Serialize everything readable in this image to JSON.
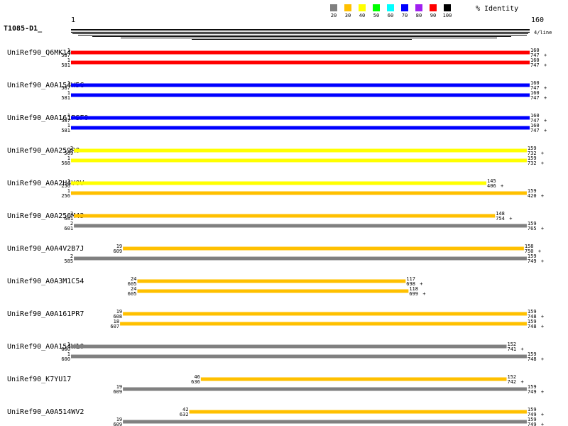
{
  "legend": {
    "items": [
      {
        "label": "20",
        "color": "#808080"
      },
      {
        "label": "30",
        "color": "#ffc000"
      },
      {
        "label": "40",
        "color": "#ffff00"
      },
      {
        "label": "50",
        "color": "#00ff00"
      },
      {
        "label": "60",
        "color": "#00ffff"
      },
      {
        "label": "70",
        "color": "#0000ff"
      },
      {
        "label": "80",
        "color": "#a020f0"
      },
      {
        "label": "90",
        "color": "#ff0000"
      },
      {
        "label": "100",
        "color": "#000000"
      }
    ],
    "title": "% Identity"
  },
  "query": {
    "name": "T1085-D1_",
    "start": 1,
    "end": 160,
    "per_line": "4/line"
  },
  "hits": [
    {
      "name": "UniRef90_Q6MK14",
      "bars": [
        {
          "qstart": 1,
          "tstart": 587,
          "qend": 160,
          "tend": 747,
          "strand": "+",
          "color": "#ff0000"
        },
        {
          "qstart": 1,
          "tstart": 581,
          "qend": 160,
          "tend": 747,
          "strand": "+",
          "color": "#ff0000"
        }
      ]
    },
    {
      "name": "UniRef90_A0A154W5G",
      "bars": [
        {
          "qstart": 1,
          "tstart": 587,
          "qend": 160,
          "tend": 747,
          "strand": "+",
          "color": "#0000ff"
        },
        {
          "qstart": 1,
          "tstart": 581,
          "qend": 160,
          "tend": 747,
          "strand": "+",
          "color": "#0000ff"
        }
      ]
    },
    {
      "name": "UniRef90_A0A161PSF0",
      "bars": [
        {
          "qstart": 1,
          "tstart": 587,
          "qend": 160,
          "tend": 747,
          "strand": "+",
          "color": "#0000ff"
        },
        {
          "qstart": 1,
          "tstart": 581,
          "qend": 160,
          "tend": 747,
          "strand": "+",
          "color": "#0000ff"
        }
      ]
    },
    {
      "name": "UniRef90_A0A259R0",
      "bars": [
        {
          "qstart": 2,
          "tstart": 569,
          "qend": 159,
          "tend": 732,
          "strand": "+",
          "color": "#ffff00"
        },
        {
          "qstart": 1,
          "tstart": 568,
          "qend": 159,
          "tend": 732,
          "strand": "+",
          "color": "#ffff00"
        }
      ]
    },
    {
      "name": "UniRef90_A0A2H4V0V",
      "bars": [
        {
          "qstart": 1,
          "tstart": 256,
          "qend": 145,
          "tend": 406,
          "strand": "+",
          "color": "#ffff00"
        },
        {
          "qstart": 1,
          "tstart": 256,
          "qend": 159,
          "tend": 420,
          "strand": "+",
          "color": "#ffc000"
        }
      ]
    },
    {
      "name": "UniRef90_A0A256M43",
      "bars": [
        {
          "qstart": 2,
          "tstart": 601,
          "qend": 148,
          "tend": 754,
          "strand": "+",
          "color": "#ffc000"
        },
        {
          "qstart": 2,
          "tstart": 601,
          "qend": 159,
          "tend": 765,
          "strand": "+",
          "color": "#808080"
        }
      ]
    },
    {
      "name": "UniRef90_A0A4V2B7J",
      "bars": [
        {
          "qstart": 19,
          "tstart": 609,
          "qend": 158,
          "tend": 750,
          "strand": "+",
          "color": "#ffc000"
        },
        {
          "qstart": 2,
          "tstart": 585,
          "qend": 159,
          "tend": 749,
          "strand": "+",
          "color": "#808080"
        }
      ]
    },
    {
      "name": "UniRef90_A0A3M1C54",
      "bars": [
        {
          "qstart": 24,
          "tstart": 605,
          "qend": 117,
          "tend": 698,
          "strand": "+",
          "color": "#ffc000"
        },
        {
          "qstart": 24,
          "tstart": 605,
          "qend": 118,
          "tend": 699,
          "strand": "+",
          "color": "#ffc000"
        }
      ]
    },
    {
      "name": "UniRef90_A0A161PR7",
      "bars": [
        {
          "qstart": 19,
          "tstart": 608,
          "qend": 159,
          "tend": 748,
          "strand": "+",
          "color": "#ffc000"
        },
        {
          "qstart": 18,
          "tstart": 607,
          "qend": 159,
          "tend": 748,
          "strand": "+",
          "color": "#ffc000"
        }
      ]
    },
    {
      "name": "UniRef90_A0A154W10",
      "bars": [
        {
          "qstart": 1,
          "tstart": 600,
          "qend": 152,
          "tend": 741,
          "strand": "+",
          "color": "#808080"
        },
        {
          "qstart": 1,
          "tstart": 600,
          "qend": 159,
          "tend": 748,
          "strand": "+",
          "color": "#808080"
        }
      ]
    },
    {
      "name": "UniRef90_K7YU17",
      "bars": [
        {
          "qstart": 46,
          "tstart": 636,
          "qend": 152,
          "tend": 742,
          "strand": "+",
          "color": "#ffc000"
        },
        {
          "qstart": 19,
          "tstart": 609,
          "qend": 159,
          "tend": 749,
          "strand": "+",
          "color": "#808080"
        }
      ]
    },
    {
      "name": "UniRef90_A0A514WV2",
      "bars": [
        {
          "qstart": 42,
          "tstart": 632,
          "qend": 159,
          "tend": 749,
          "strand": "+",
          "color": "#ffc000"
        },
        {
          "qstart": 19,
          "tstart": 609,
          "qend": 159,
          "tend": 749,
          "strand": "+",
          "color": "#808080"
        }
      ]
    }
  ]
}
